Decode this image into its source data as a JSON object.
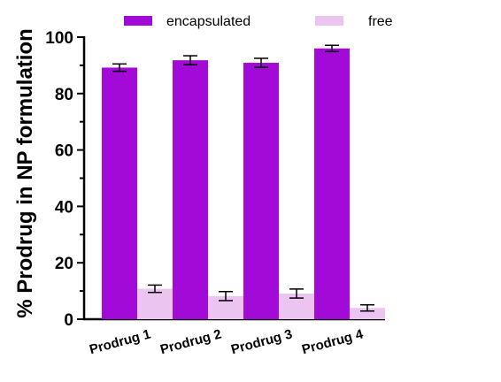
{
  "chart_data": {
    "type": "bar",
    "title": "",
    "xlabel": "",
    "ylabel": "% Prodrug in NP formulation",
    "ylim": [
      0,
      100
    ],
    "yticks": [
      0,
      20,
      40,
      60,
      80,
      100
    ],
    "grid": false,
    "legend_position": "top",
    "categories": [
      "Prodrug 1",
      "Prodrug 2",
      "Prodrug 3",
      "Prodrug 4"
    ],
    "series": [
      {
        "name": "encapsulated",
        "color": "#a20ad7",
        "values": [
          89.2,
          91.8,
          90.9,
          96.0
        ],
        "errors": [
          1.3,
          1.6,
          1.6,
          1.1
        ]
      },
      {
        "name": "free",
        "color": "#ebc4f0",
        "values": [
          10.8,
          8.2,
          9.1,
          4.0
        ],
        "errors": [
          1.3,
          1.6,
          1.6,
          1.1
        ]
      }
    ]
  }
}
